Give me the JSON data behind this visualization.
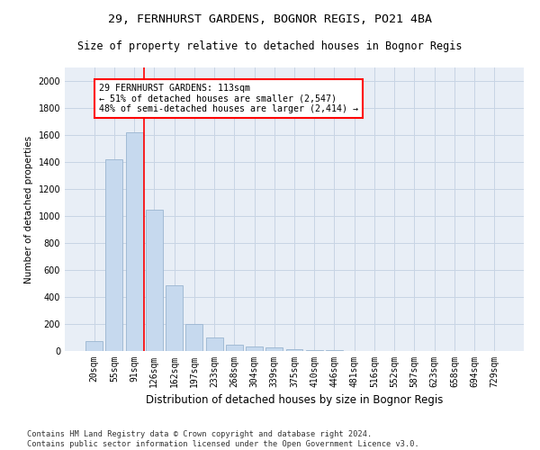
{
  "title_line1": "29, FERNHURST GARDENS, BOGNOR REGIS, PO21 4BA",
  "title_line2": "Size of property relative to detached houses in Bognor Regis",
  "xlabel": "Distribution of detached houses by size in Bognor Regis",
  "ylabel": "Number of detached properties",
  "footnote": "Contains HM Land Registry data © Crown copyright and database right 2024.\nContains public sector information licensed under the Open Government Licence v3.0.",
  "bar_labels": [
    "20sqm",
    "55sqm",
    "91sqm",
    "126sqm",
    "162sqm",
    "197sqm",
    "233sqm",
    "268sqm",
    "304sqm",
    "339sqm",
    "375sqm",
    "410sqm",
    "446sqm",
    "481sqm",
    "516sqm",
    "552sqm",
    "587sqm",
    "623sqm",
    "658sqm",
    "694sqm",
    "729sqm"
  ],
  "bar_values": [
    75,
    1420,
    1620,
    1050,
    490,
    200,
    100,
    50,
    35,
    25,
    15,
    10,
    5,
    3,
    2,
    1,
    1,
    1,
    1,
    1,
    1
  ],
  "bar_color": "#c6d9ee",
  "bar_edge_color": "#9ab5d0",
  "grid_color": "#c8d4e4",
  "bg_color": "#e8eef6",
  "red_line_x": 2.5,
  "annotation_text": "29 FERNHURST GARDENS: 113sqm\n← 51% of detached houses are smaller (2,547)\n48% of semi-detached houses are larger (2,414) →",
  "ylim": [
    0,
    2100
  ],
  "yticks": [
    0,
    200,
    400,
    600,
    800,
    1000,
    1200,
    1400,
    1600,
    1800,
    2000
  ],
  "fig_width": 6.0,
  "fig_height": 5.0,
  "title1_fontsize": 9.5,
  "title2_fontsize": 8.5,
  "xlabel_fontsize": 8.5,
  "ylabel_fontsize": 7.5,
  "tick_fontsize": 7,
  "footnote_fontsize": 6.2
}
